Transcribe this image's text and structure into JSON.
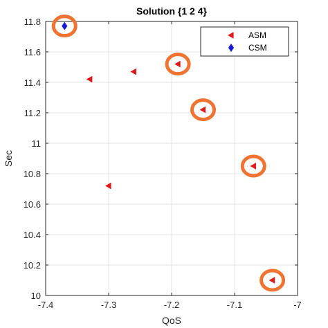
{
  "chart_data": {
    "type": "scatter",
    "title": "Solution {1  2  4}",
    "xlabel": "QoS",
    "ylabel": "Sec",
    "xlim": [
      -7.4,
      -7.0
    ],
    "ylim": [
      10.0,
      11.8
    ],
    "xticks": [
      "-7.4",
      "-7.3",
      "-7.2",
      "-7.1",
      "-7"
    ],
    "yticks": [
      "10",
      "10.2",
      "10.4",
      "10.6",
      "10.8",
      "11",
      "11.2",
      "11.4",
      "11.6",
      "11.8"
    ],
    "xtick_values": [
      -7.4,
      -7.3,
      -7.2,
      -7.1,
      -7.0
    ],
    "ytick_values": [
      10.0,
      10.2,
      10.4,
      10.6,
      10.8,
      11.0,
      11.2,
      11.4,
      11.6,
      11.8
    ],
    "grid": true,
    "legend_position": "top-right",
    "series": [
      {
        "name": "ASM",
        "marker": "left-triangle",
        "color": "#e0191b",
        "x": [
          -7.33,
          -7.26,
          -7.19,
          -7.15,
          -7.3,
          -7.07,
          -7.04
        ],
        "y": [
          11.42,
          11.47,
          11.52,
          11.22,
          10.72,
          10.85,
          10.1
        ],
        "highlighted": [
          false,
          false,
          true,
          true,
          false,
          true,
          true
        ]
      },
      {
        "name": "CSM",
        "marker": "diamond",
        "color": "#1a1ad6",
        "x": [
          -7.37
        ],
        "y": [
          11.77
        ],
        "highlighted": [
          true
        ]
      }
    ],
    "highlight_color": "#ef7433"
  }
}
